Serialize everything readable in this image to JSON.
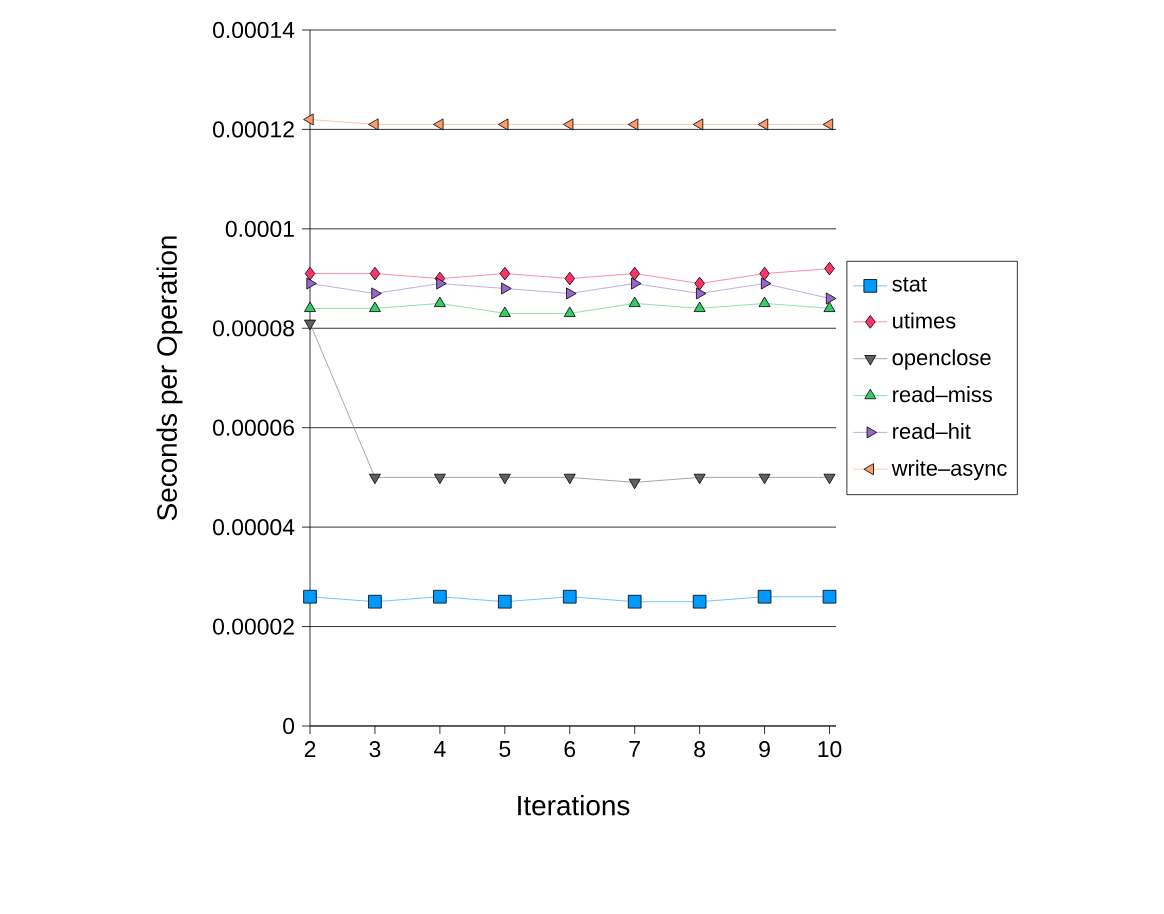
{
  "chart_data": {
    "type": "line",
    "xlabel": "Iterations",
    "ylabel": "Seconds per Operation",
    "x": [
      2,
      3,
      4,
      5,
      6,
      7,
      8,
      9,
      10
    ],
    "xlim": [
      2,
      10.1
    ],
    "xticks": [
      2,
      3,
      4,
      5,
      6,
      7,
      8,
      9,
      10
    ],
    "ylim": [
      0,
      0.00014
    ],
    "yticks": [
      {
        "value": 0,
        "label": "0"
      },
      {
        "value": 2e-05,
        "label": "0.00002"
      },
      {
        "value": 4e-05,
        "label": "0.00004"
      },
      {
        "value": 6e-05,
        "label": "0.00006"
      },
      {
        "value": 8e-05,
        "label": "0.00008"
      },
      {
        "value": 0.0001,
        "label": "0.0001"
      },
      {
        "value": 0.00012,
        "label": "0.00012"
      },
      {
        "value": 0.00014,
        "label": "0.00014"
      }
    ],
    "grid": "y",
    "legend": "right",
    "line_style": "solid",
    "series": [
      {
        "name": "stat",
        "color": "#0099ff",
        "marker": "square",
        "values": [
          2.6e-05,
          2.5e-05,
          2.6e-05,
          2.5e-05,
          2.6e-05,
          2.5e-05,
          2.5e-05,
          2.6e-05,
          2.6e-05
        ]
      },
      {
        "name": "utimes",
        "color": "#ff3366",
        "marker": "diamond",
        "values": [
          9.1e-05,
          9.1e-05,
          9e-05,
          9.1e-05,
          9e-05,
          9.1e-05,
          8.9e-05,
          9.1e-05,
          9.2e-05
        ]
      },
      {
        "name": "openclose",
        "color": "#606060",
        "marker": "triangle",
        "values": [
          8.1e-05,
          5e-05,
          5e-05,
          5e-05,
          5e-05,
          4.9e-05,
          5e-05,
          5e-05,
          5e-05
        ]
      },
      {
        "name": "read–miss",
        "color": "#33cc66",
        "marker": "triangle",
        "values": [
          8.4e-05,
          8.4e-05,
          8.5e-05,
          8.3e-05,
          8.3e-05,
          8.5e-05,
          8.4e-05,
          8.5e-05,
          8.4e-05
        ]
      },
      {
        "name": "read–hit",
        "color": "#9966cc",
        "marker": "triangle",
        "values": [
          8.9e-05,
          8.7e-05,
          8.9e-05,
          8.8e-05,
          8.7e-05,
          8.9e-05,
          8.7e-05,
          8.9e-05,
          8.6e-05
        ]
      },
      {
        "name": "write–async",
        "color": "#ff9966",
        "marker": "triangle",
        "values": [
          0.000122,
          0.000121,
          0.000121,
          0.000121,
          0.000121,
          0.000121,
          0.000121,
          0.000121,
          0.000121
        ]
      }
    ]
  }
}
